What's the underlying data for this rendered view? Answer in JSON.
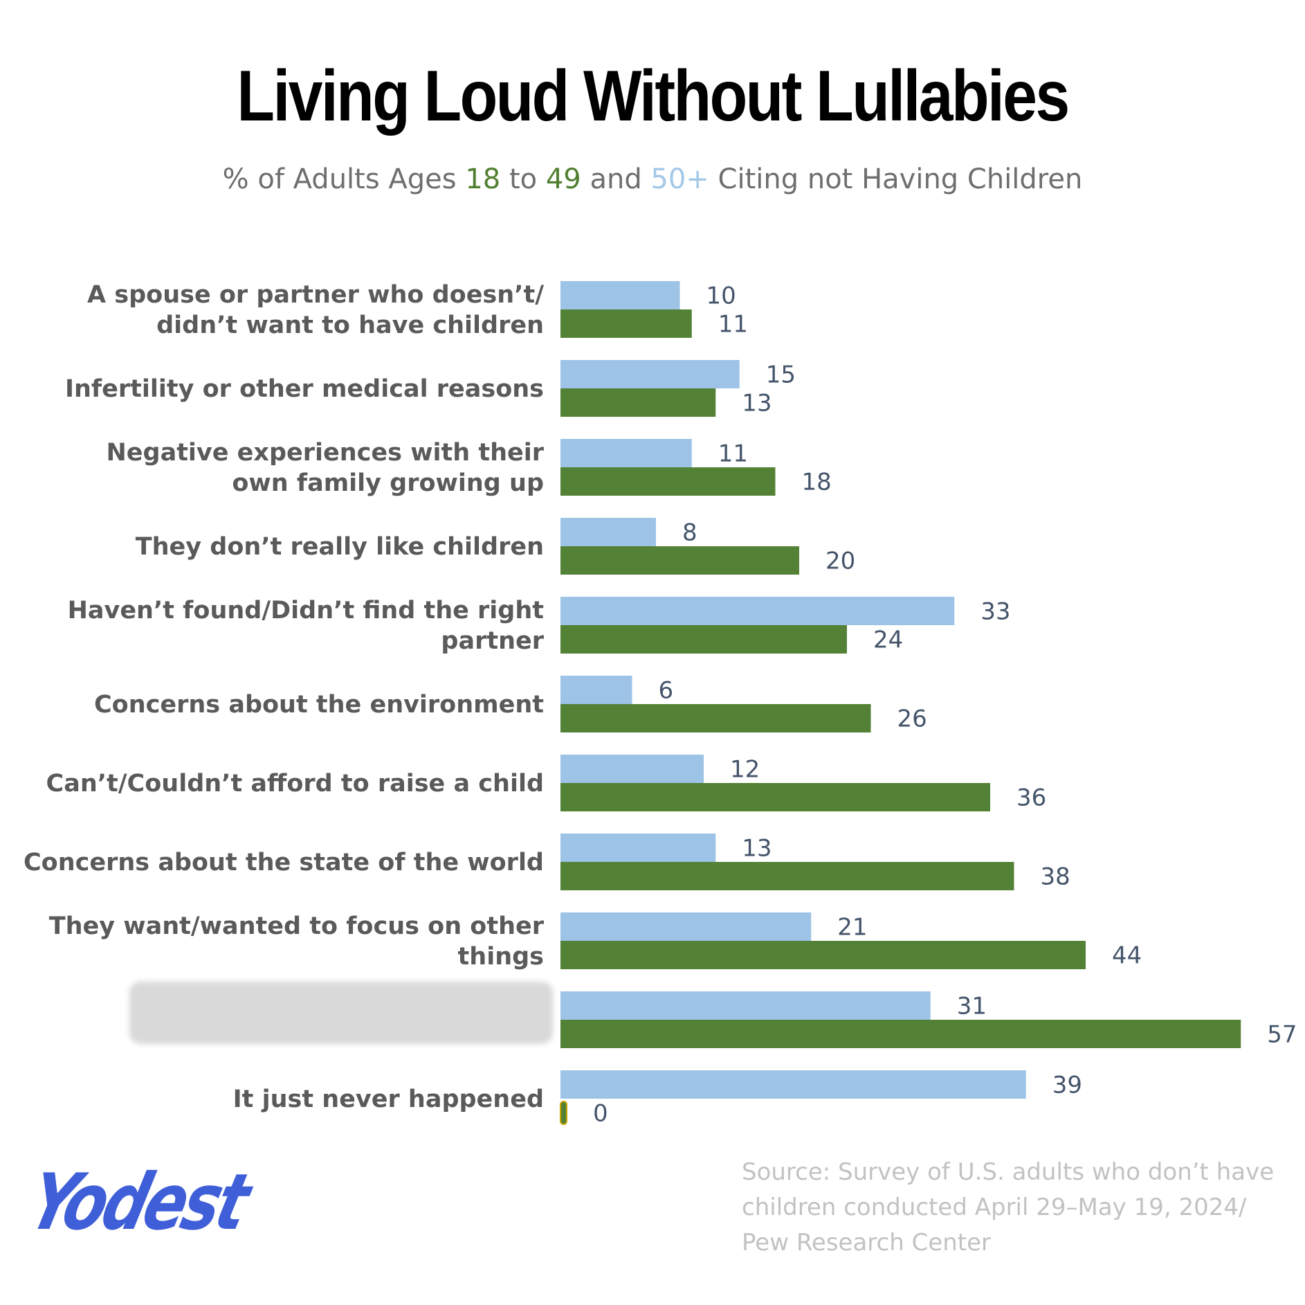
{
  "header": {
    "title": "Living Loud Without Lullabies",
    "subtitle": {
      "prefix": "% of Adults Ages ",
      "age_low": "18",
      "to": " to ",
      "age_high": "49",
      "and": " and ",
      "age_older": "50+",
      "suffix": " Citing not Having Children"
    }
  },
  "colors": {
    "series_50_plus": "#9dc3e6",
    "series_18_49": "#538135"
  },
  "chart_data": {
    "type": "bar",
    "orientation": "horizontal",
    "title": "Living Loud Without Lullabies",
    "subtitle": "% of Adults Ages 18 to 49 and 50+ Citing not Having Children",
    "categories": [
      "A spouse or partner who doesn’t/ didn’t want to have children",
      "Infertility or other medical reasons",
      "Negative experiences with their own family growing up",
      "They don’t really like children",
      "Haven’t found/Didn’t find the right partner",
      "Concerns about the environment",
      "Can’t/Couldn’t afford to raise a child",
      "Concerns about the state of the world",
      "They want/wanted to focus on other things",
      "",
      "It just never happened"
    ],
    "category_lines": [
      [
        "A spouse or partner who doesn’t/",
        "didn’t want to have children"
      ],
      [
        "Infertility or other medical reasons"
      ],
      [
        "Negative experiences with their",
        "own family growing up"
      ],
      [
        "They don’t really like children"
      ],
      [
        "Haven’t found/Didn’t find the right",
        "partner"
      ],
      [
        "Concerns about the environment"
      ],
      [
        "Can’t/Couldn’t afford to raise a child"
      ],
      [
        "Concerns about the state of the world"
      ],
      [
        "They want/wanted to focus on other",
        "things"
      ],
      [],
      [
        "It just never happened"
      ]
    ],
    "series": [
      {
        "name": "50+",
        "values": [
          10,
          15,
          11,
          8,
          33,
          6,
          12,
          13,
          21,
          31,
          39
        ]
      },
      {
        "name": "18 to 49",
        "values": [
          11,
          13,
          18,
          20,
          24,
          26,
          36,
          38,
          44,
          57,
          0
        ]
      }
    ],
    "xlim": [
      0,
      57
    ],
    "grid": false,
    "legend": "none"
  },
  "branding": {
    "logo": "Yodest"
  },
  "source": {
    "lines": [
      "Source: Survey of U.S. adults who don’t have",
      "children conducted April 29–May 19, 2024/",
      "Pew Research Center"
    ]
  }
}
